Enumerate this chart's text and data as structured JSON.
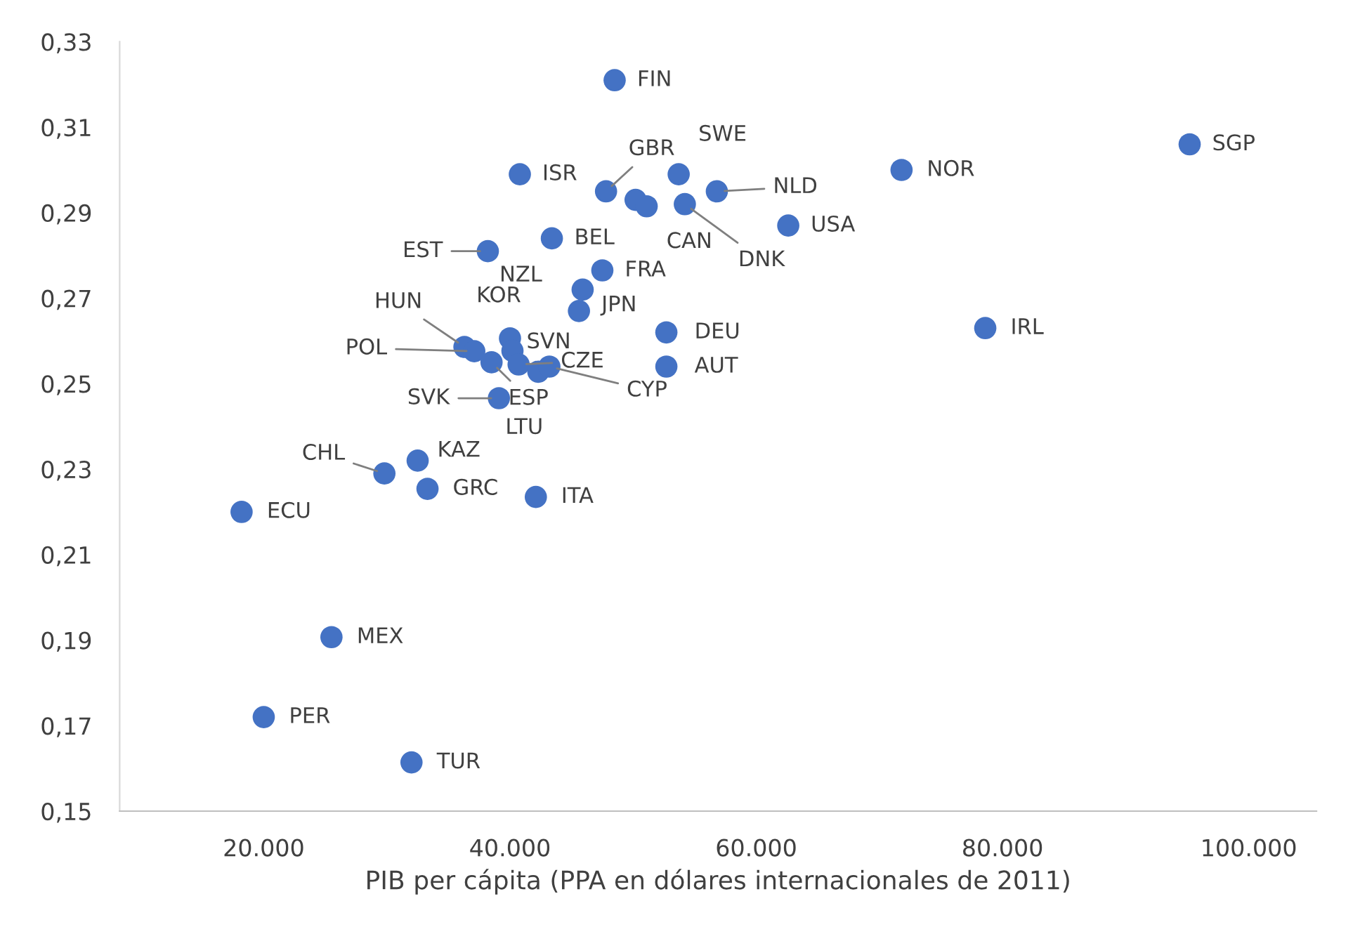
{
  "chart_data": {
    "type": "scatter",
    "xlabel": "PIB per cápita (PPA en dólares internacionales de 2011)",
    "xlim": [
      8300,
      105500
    ],
    "xticks": [
      {
        "value": 20000,
        "label": "20.000"
      },
      {
        "value": 40000,
        "label": "40.000"
      },
      {
        "value": 60000,
        "label": "60.000"
      },
      {
        "value": 80000,
        "label": "80.000"
      },
      {
        "value": 100000,
        "label": "100.000"
      }
    ],
    "ylim": [
      0.15,
      0.33
    ],
    "yticks": [
      {
        "value": 0.15,
        "label": "0,15"
      },
      {
        "value": 0.17,
        "label": "0,17"
      },
      {
        "value": 0.19,
        "label": "0,19"
      },
      {
        "value": 0.21,
        "label": "0,21"
      },
      {
        "value": 0.23,
        "label": "0,23"
      },
      {
        "value": 0.25,
        "label": "0,25"
      },
      {
        "value": 0.27,
        "label": "0,27"
      },
      {
        "value": 0.29,
        "label": "0,29"
      },
      {
        "value": 0.31,
        "label": "0,31"
      },
      {
        "value": 0.33,
        "label": "0,33"
      }
    ],
    "grid": false,
    "marker": "circle",
    "series": [
      {
        "color": "#4472c4",
        "x": [
          48500,
          95200,
          71800,
          78600,
          62600,
          40800,
          47800,
          53700,
          56800,
          50200,
          54200,
          43400,
          38200,
          47500,
          45900,
          45600,
          52700,
          52700,
          36300,
          37100,
          40000,
          40200,
          40700,
          39100,
          38500,
          42300,
          43200,
          32500,
          29800,
          33300,
          42100,
          18200,
          25500,
          20000,
          32000,
          51100
        ],
        "values": [
          0.321,
          0.306,
          0.3,
          0.263,
          0.287,
          0.299,
          0.295,
          0.299,
          0.295,
          0.293,
          0.292,
          0.284,
          0.281,
          0.2765,
          0.272,
          0.267,
          0.262,
          0.254,
          0.2586,
          0.2576,
          0.2606,
          0.2577,
          0.2545,
          0.2466,
          0.255,
          0.2528,
          0.254,
          0.232,
          0.229,
          0.2254,
          0.2235,
          0.22,
          0.1907,
          0.172,
          0.1614,
          0.2915
        ]
      }
    ],
    "annotations": [
      {
        "text": "FIN",
        "x": 48500,
        "y": 0.321
      },
      {
        "text": "SGP",
        "x": 95200,
        "y": 0.306
      },
      {
        "text": "NOR",
        "x": 71800,
        "y": 0.3
      },
      {
        "text": "IRL",
        "x": 78600,
        "y": 0.263
      },
      {
        "text": "USA",
        "x": 62600,
        "y": 0.287
      },
      {
        "text": "ISR",
        "x": 40800,
        "y": 0.299
      },
      {
        "text": "GBR",
        "x": 47800,
        "y": 0.295
      },
      {
        "text": "SWE",
        "x": 53700,
        "y": 0.299
      },
      {
        "text": "NLD",
        "x": 56800,
        "y": 0.295
      },
      {
        "text": "CAN",
        "x": 50200,
        "y": 0.293
      },
      {
        "text": "DNK",
        "x": 54200,
        "y": 0.292
      },
      {
        "text": "BEL",
        "x": 43400,
        "y": 0.284
      },
      {
        "text": "EST",
        "x": 38200,
        "y": 0.281
      },
      {
        "text": "FRA",
        "x": 47500,
        "y": 0.2765
      },
      {
        "text": "NZL",
        "x": 45900,
        "y": 0.272
      },
      {
        "text": "JPN",
        "x": 45600,
        "y": 0.267
      },
      {
        "text": "DEU",
        "x": 52700,
        "y": 0.262
      },
      {
        "text": "AUT",
        "x": 52700,
        "y": 0.254
      },
      {
        "text": "HUN",
        "x": 36300,
        "y": 0.2586
      },
      {
        "text": "POL",
        "x": 37100,
        "y": 0.2576
      },
      {
        "text": "KOR",
        "x": 40000,
        "y": 0.2606
      },
      {
        "text": "SVN",
        "x": 40200,
        "y": 0.2577
      },
      {
        "text": "CZE",
        "x": 40700,
        "y": 0.2545
      },
      {
        "text": "SVK",
        "x": 39100,
        "y": 0.2466
      },
      {
        "text": "ESP",
        "x": 38500,
        "y": 0.255
      },
      {
        "text": "LTU",
        "x": 42300,
        "y": 0.2528
      },
      {
        "text": "CYP",
        "x": 43200,
        "y": 0.254
      },
      {
        "text": "KAZ",
        "x": 32500,
        "y": 0.232
      },
      {
        "text": "CHL",
        "x": 29800,
        "y": 0.229
      },
      {
        "text": "GRC",
        "x": 33300,
        "y": 0.2254
      },
      {
        "text": "ITA",
        "x": 42100,
        "y": 0.2235
      },
      {
        "text": "ECU",
        "x": 18200,
        "y": 0.22
      },
      {
        "text": "MEX",
        "x": 25500,
        "y": 0.1907
      },
      {
        "text": "PER",
        "x": 20000,
        "y": 0.172
      },
      {
        "text": "TUR",
        "x": 32000,
        "y": 0.1614
      }
    ]
  }
}
